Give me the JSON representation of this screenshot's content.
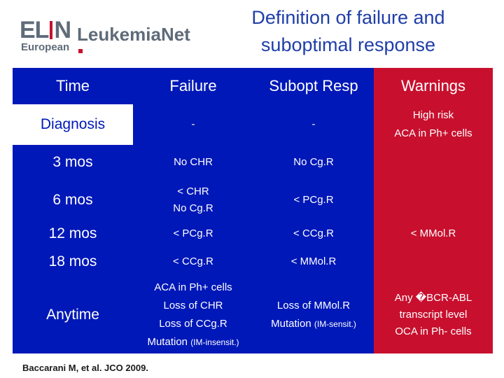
{
  "logo": {
    "mark_left": "EL",
    "mark_right": "N",
    "brand": "LeukemiaNet",
    "sub": "European"
  },
  "title": {
    "line1": "Definition of failure and",
    "line2": "suboptimal response"
  },
  "table": {
    "headers": {
      "time": "Time",
      "failure": "Failure",
      "subopt": "Subopt Resp",
      "warnings": "Warnings"
    },
    "rows": {
      "diagnosis": {
        "time": "Diagnosis",
        "failure": "-",
        "subopt": "-",
        "warn1": "High risk",
        "warn2": "ACA in Ph+ cells"
      },
      "m3": {
        "time": "3 mos",
        "failure": "No CHR",
        "subopt": "No Cg.R"
      },
      "m6": {
        "time": "6 mos",
        "failure1": "< CHR",
        "failure2": "No Cg.R",
        "subopt": "< PCg.R"
      },
      "m12": {
        "time": "12 mos",
        "failure": "< PCg.R",
        "subopt": "< CCg.R",
        "warn": "< MMol.R"
      },
      "m18": {
        "time": "18 mos",
        "failure": "< CCg.R",
        "subopt": "< MMol.R"
      },
      "anytime": {
        "time": "Anytime",
        "failure1": "ACA in Ph+ cells",
        "failure2": "Loss of CHR",
        "failure3": "Loss of CCg.R",
        "failure4_main": "Mutation",
        "failure4_small": "(IM-insensit.)",
        "subopt1": "Loss of MMol.R",
        "subopt2_main": "Mutation",
        "subopt2_small": "(IM-sensit.)",
        "warn1": "Any �BCR-ABL",
        "warn2": "transcript level",
        "warn3": "OCA in Ph- cells"
      }
    }
  },
  "footnote": "Baccarani M, et al. JCO 2009.",
  "colors": {
    "header_blue": "#0018b8",
    "warning_red": "#c8102e",
    "title_blue": "#1f3ea8",
    "logo_gray": "#5f6b78"
  }
}
